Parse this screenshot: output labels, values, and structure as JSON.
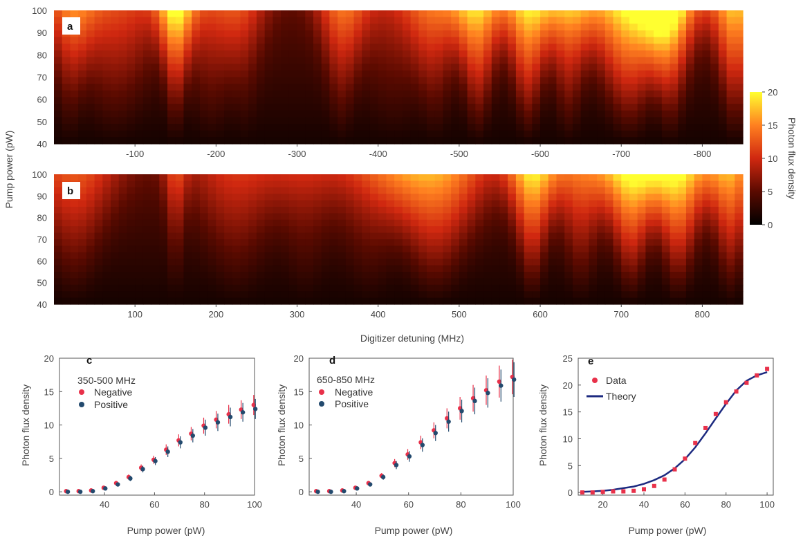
{
  "chart_data": [
    {
      "panel": "a",
      "type": "heatmap",
      "ylabel": "Pump power (pW)",
      "yticks": [
        "40",
        "50",
        "60",
        "70",
        "80",
        "90",
        "100"
      ],
      "ylim": [
        40,
        100
      ],
      "xticks": [
        "-100",
        "-200",
        "-300",
        "-400",
        "-500",
        "-600",
        "-700",
        "-800"
      ],
      "xlim": [
        0,
        -850
      ],
      "colorbar": {
        "label": "Photon flux density",
        "ticks": [
          "0",
          "5",
          "10",
          "15",
          "20"
        ],
        "range": [
          0,
          20
        ]
      },
      "peaks": [
        {
          "x": -20,
          "hw": 25,
          "a": 7
        },
        {
          "x": -75,
          "hw": 55,
          "a": 7
        },
        {
          "x": -150,
          "hw": 18,
          "a": 12
        },
        {
          "x": -195,
          "hw": 40,
          "a": 6
        },
        {
          "x": -235,
          "hw": 25,
          "a": 4
        },
        {
          "x": -355,
          "hw": 25,
          "a": 8
        },
        {
          "x": -420,
          "hw": 55,
          "a": 4
        },
        {
          "x": -470,
          "hw": 30,
          "a": 7
        },
        {
          "x": -523,
          "hw": 25,
          "a": 13
        },
        {
          "x": -585,
          "hw": 25,
          "a": 14
        },
        {
          "x": -635,
          "hw": 25,
          "a": 10
        },
        {
          "x": -710,
          "hw": 45,
          "a": 15
        },
        {
          "x": -760,
          "hw": 28,
          "a": 13
        },
        {
          "x": -840,
          "hw": 25,
          "a": 13
        }
      ]
    },
    {
      "panel": "b",
      "type": "heatmap",
      "ylabel": "Pump power (pW)",
      "yticks": [
        "40",
        "50",
        "60",
        "70",
        "80",
        "90",
        "100"
      ],
      "ylim": [
        40,
        100
      ],
      "xticks": [
        "100",
        "200",
        "300",
        "400",
        "500",
        "600",
        "700",
        "800"
      ],
      "xlim": [
        0,
        850
      ],
      "xlabel": "Digitizer detuning (MHz)",
      "peaks": [
        {
          "x": 25,
          "hw": 45,
          "a": 8
        },
        {
          "x": 150,
          "hw": 12,
          "a": 6
        },
        {
          "x": 225,
          "hw": 50,
          "a": 6
        },
        {
          "x": 310,
          "hw": 35,
          "a": 4
        },
        {
          "x": 390,
          "hw": 45,
          "a": 5
        },
        {
          "x": 470,
          "hw": 55,
          "a": 12
        },
        {
          "x": 590,
          "hw": 25,
          "a": 14
        },
        {
          "x": 650,
          "hw": 30,
          "a": 9
        },
        {
          "x": 712,
          "hw": 30,
          "a": 15
        },
        {
          "x": 770,
          "hw": 30,
          "a": 15
        },
        {
          "x": 835,
          "hw": 25,
          "a": 12
        }
      ]
    },
    {
      "panel": "c",
      "type": "scatter",
      "legend_title": "350-500 MHz",
      "xlabel": "Pump power (pW)",
      "ylabel": "Photon flux density",
      "xlim": [
        22,
        100
      ],
      "ylim": [
        -0.5,
        20
      ],
      "xticks": [
        40,
        60,
        80,
        100
      ],
      "yticks": [
        0,
        5,
        10,
        15,
        20
      ],
      "x": [
        25,
        30,
        35,
        40,
        45,
        50,
        55,
        60,
        65,
        70,
        75,
        80,
        85,
        90,
        95,
        100
      ],
      "series": [
        {
          "name": "Negative",
          "color": "#e8314a",
          "values": [
            0.1,
            0.1,
            0.2,
            0.6,
            1.3,
            2.2,
            3.6,
            4.8,
            6.3,
            7.7,
            8.7,
            9.9,
            10.8,
            11.6,
            12.3,
            13.0
          ],
          "err": [
            0.1,
            0.1,
            0.1,
            0.2,
            0.3,
            0.4,
            0.5,
            0.6,
            0.8,
            0.9,
            1.0,
            1.2,
            1.3,
            1.4,
            1.4,
            1.5
          ]
        },
        {
          "name": "Positive",
          "color": "#234a6e",
          "values": [
            0.0,
            0.0,
            0.1,
            0.5,
            1.1,
            2.0,
            3.4,
            4.6,
            6.0,
            7.4,
            8.4,
            9.6,
            10.4,
            11.2,
            11.9,
            12.4
          ],
          "err": [
            0.1,
            0.1,
            0.1,
            0.2,
            0.3,
            0.4,
            0.5,
            0.6,
            0.8,
            0.9,
            1.0,
            1.2,
            1.3,
            1.4,
            1.4,
            1.5
          ]
        }
      ]
    },
    {
      "panel": "d",
      "type": "scatter",
      "legend_title": "650-850 MHz",
      "xlabel": "Pump power (pW)",
      "ylabel": "Photon flux density",
      "xlim": [
        22,
        100
      ],
      "ylim": [
        -0.5,
        20
      ],
      "xticks": [
        40,
        60,
        80,
        100
      ],
      "yticks": [
        0,
        5,
        10,
        15,
        20
      ],
      "x": [
        25,
        30,
        35,
        40,
        45,
        50,
        55,
        60,
        65,
        70,
        75,
        80,
        85,
        90,
        95,
        100
      ],
      "series": [
        {
          "name": "Negative",
          "color": "#e8314a",
          "values": [
            0.1,
            0.1,
            0.2,
            0.6,
            1.3,
            2.4,
            4.3,
            5.6,
            7.4,
            9.2,
            11.0,
            12.5,
            14.0,
            15.2,
            16.5,
            17.2
          ],
          "err": [
            0.1,
            0.1,
            0.1,
            0.2,
            0.3,
            0.4,
            0.6,
            0.8,
            1.0,
            1.2,
            1.5,
            1.7,
            2.0,
            2.2,
            2.4,
            2.6
          ]
        },
        {
          "name": "Positive",
          "color": "#234a6e",
          "values": [
            0.0,
            0.0,
            0.1,
            0.5,
            1.1,
            2.2,
            4.0,
            5.3,
            7.0,
            8.8,
            10.5,
            12.1,
            13.6,
            14.8,
            15.9,
            16.8
          ],
          "err": [
            0.1,
            0.1,
            0.1,
            0.2,
            0.3,
            0.4,
            0.6,
            0.8,
            1.0,
            1.2,
            1.5,
            1.7,
            2.0,
            2.2,
            2.4,
            2.6
          ]
        }
      ]
    },
    {
      "panel": "e",
      "type": "line",
      "xlabel": "Pump power (pW)",
      "ylabel": "Photon flux density",
      "xlim": [
        8,
        103
      ],
      "ylim": [
        -0.5,
        25
      ],
      "xticks": [
        20,
        40,
        60,
        80,
        100
      ],
      "yticks": [
        0,
        5,
        10,
        15,
        20,
        25
      ],
      "series": [
        {
          "name": "Data",
          "color": "#e8314a",
          "kind": "points",
          "x": [
            10,
            15,
            20,
            25,
            30,
            35,
            40,
            45,
            50,
            55,
            60,
            65,
            70,
            75,
            80,
            85,
            90,
            95,
            100
          ],
          "values": [
            0.0,
            0.0,
            0.1,
            0.2,
            0.2,
            0.3,
            0.6,
            1.2,
            2.4,
            4.3,
            6.3,
            9.2,
            12.0,
            14.6,
            16.8,
            18.8,
            20.4,
            21.8,
            23.0
          ]
        },
        {
          "name": "Theory",
          "color": "#1c2a80",
          "kind": "line",
          "x": [
            10,
            15,
            20,
            25,
            30,
            35,
            40,
            45,
            50,
            55,
            60,
            65,
            70,
            75,
            80,
            85,
            90,
            95,
            100
          ],
          "values": [
            0.1,
            0.2,
            0.3,
            0.5,
            0.8,
            1.1,
            1.6,
            2.3,
            3.2,
            4.5,
            6.2,
            8.4,
            11.0,
            13.8,
            16.5,
            19.0,
            20.8,
            21.8,
            22.4
          ]
        }
      ]
    }
  ]
}
